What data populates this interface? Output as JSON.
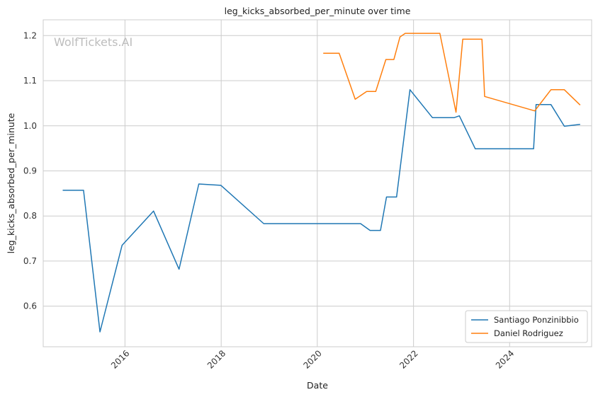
{
  "chart_data": {
    "type": "line",
    "title": "leg_kicks_absorbed_per_minute over time",
    "xlabel": "Date",
    "ylabel": "leg_kicks_absorbed_per_minute",
    "watermark": "WolfTickets.AI",
    "x_ticks": [
      "2016",
      "2018",
      "2020",
      "2022",
      "2024"
    ],
    "y_ticks": [
      "0.6",
      "0.7",
      "0.8",
      "0.9",
      "1.0",
      "1.1",
      "1.2"
    ],
    "xlim": [
      "2014-04-20",
      "2025-09-15"
    ],
    "ylim": [
      0.51,
      1.235
    ],
    "grid": true,
    "legend": "lower-right",
    "series": [
      {
        "name": "Santiago Ponzinibbio",
        "color": "#1f77b4",
        "points": [
          [
            "2014-09-15",
            0.857
          ],
          [
            "2015-02-20",
            0.857
          ],
          [
            "2015-06-25",
            0.543
          ],
          [
            "2015-12-10",
            0.735
          ],
          [
            "2016-08-05",
            0.811
          ],
          [
            "2017-02-15",
            0.682
          ],
          [
            "2017-07-15",
            0.871
          ],
          [
            "2017-12-30",
            0.868
          ],
          [
            "2018-11-20",
            0.783
          ],
          [
            "2020-11-25",
            0.783
          ],
          [
            "2021-02-05",
            0.768
          ],
          [
            "2021-04-25",
            0.768
          ],
          [
            "2021-06-10",
            0.842
          ],
          [
            "2021-08-25",
            0.842
          ],
          [
            "2021-12-05",
            1.08
          ],
          [
            "2022-05-25",
            1.018
          ],
          [
            "2022-11-05",
            1.018
          ],
          [
            "2022-12-15",
            1.022
          ],
          [
            "2023-04-15",
            0.949
          ],
          [
            "2024-07-01",
            0.949
          ],
          [
            "2024-07-20",
            1.047
          ],
          [
            "2024-11-10",
            1.047
          ],
          [
            "2025-02-20",
            0.999
          ],
          [
            "2025-06-20",
            1.003
          ]
        ]
      },
      {
        "name": "Daniel Rodriguez",
        "color": "#ff7f0e",
        "points": [
          [
            "2020-02-15",
            1.161
          ],
          [
            "2020-06-15",
            1.161
          ],
          [
            "2020-10-15",
            1.059
          ],
          [
            "2021-01-10",
            1.076
          ],
          [
            "2021-03-20",
            1.076
          ],
          [
            "2021-06-05",
            1.147
          ],
          [
            "2021-08-05",
            1.147
          ],
          [
            "2021-09-20",
            1.197
          ],
          [
            "2021-10-30",
            1.205
          ],
          [
            "2022-07-20",
            1.205
          ],
          [
            "2022-11-20",
            1.03
          ],
          [
            "2023-01-10",
            1.192
          ],
          [
            "2023-06-05",
            1.192
          ],
          [
            "2023-06-25",
            1.065
          ],
          [
            "2024-07-10",
            1.033
          ],
          [
            "2024-11-10",
            1.08
          ],
          [
            "2025-02-20",
            1.08
          ],
          [
            "2025-06-20",
            1.046
          ]
        ]
      }
    ]
  }
}
